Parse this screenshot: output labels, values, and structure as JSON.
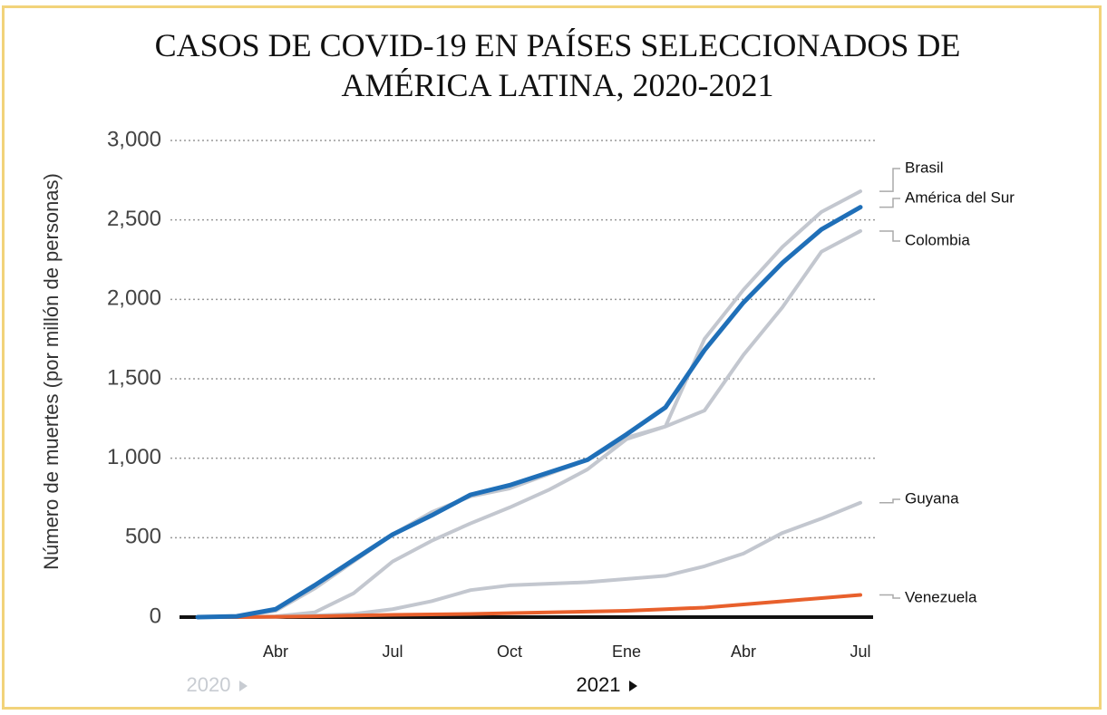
{
  "chart_data": {
    "type": "line",
    "title": "CASOS DE COVID-19 EN PAÍSES SELECCIONADOS DE AMÉRICA LATINA, 2020-2021",
    "y_label": "Número de muertes (por millón de personas)",
    "categories": [
      null,
      "Abr",
      null,
      null,
      "Jul",
      null,
      null,
      "Oct",
      null,
      null,
      "Ene",
      null,
      null,
      "Abr",
      null,
      null,
      "Jul",
      null
    ],
    "x_group_labels": [
      "2020",
      "2021"
    ],
    "series": [
      {
        "name": "Brasil",
        "color": "#c3c7cf",
        "values": [
          0,
          5,
          40,
          180,
          350,
          520,
          660,
          760,
          810,
          900,
          990,
          1130,
          1200,
          1750,
          2060,
          2330,
          2550,
          2680
        ]
      },
      {
        "name": "Colombia",
        "color": "#c3c7cf",
        "values": [
          0,
          0,
          5,
          30,
          150,
          350,
          480,
          590,
          690,
          800,
          930,
          1120,
          1200,
          1300,
          1650,
          1950,
          2300,
          2430
        ]
      },
      {
        "name": "Guyana",
        "color": "#c3c7cf",
        "values": [
          0,
          0,
          0,
          10,
          20,
          50,
          100,
          170,
          200,
          210,
          220,
          240,
          260,
          320,
          400,
          530,
          620,
          720
        ]
      },
      {
        "name": "Venezuela",
        "color": "#e8602c",
        "values": [
          0,
          0,
          2,
          5,
          10,
          14,
          17,
          20,
          25,
          30,
          35,
          40,
          50,
          60,
          80,
          100,
          120,
          140
        ]
      },
      {
        "name": "América del Sur",
        "color": "#1f6fb8",
        "values": [
          0,
          5,
          50,
          200,
          360,
          520,
          640,
          770,
          830,
          910,
          990,
          1150,
          1320,
          1680,
          1980,
          2230,
          2440,
          2580
        ]
      }
    ],
    "ylim": [
      0,
      3000
    ],
    "yticks": [
      0,
      500,
      {
        "value": 1000,
        "label": "1,000"
      },
      {
        "value": 1500,
        "label": "1,500"
      },
      {
        "value": 2000,
        "label": "2,000"
      },
      {
        "value": 2500,
        "label": "2,500"
      },
      {
        "value": 3000,
        "label": "3,000"
      }
    ],
    "grid": true
  }
}
